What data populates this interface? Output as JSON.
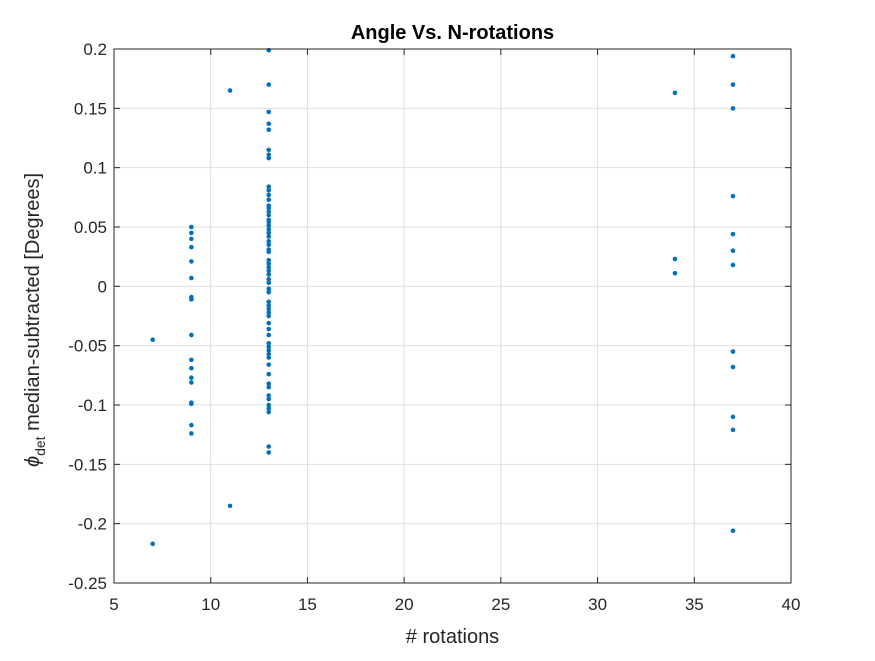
{
  "chart_data": {
    "type": "scatter",
    "title": "Angle Vs. N-rotations",
    "xlabel": "# rotations",
    "ylabel": {
      "symbol": "ϕ",
      "subscript": "det",
      "rest": " median-subtracted [Degrees]"
    },
    "xlim": [
      5,
      40
    ],
    "ylim": [
      -0.25,
      0.2
    ],
    "xticks": [
      5,
      10,
      15,
      20,
      25,
      30,
      35,
      40
    ],
    "yticks": [
      -0.25,
      -0.2,
      -0.15,
      -0.1,
      -0.05,
      0,
      0.05,
      0.1,
      0.15,
      0.2
    ],
    "xtick_labels": [
      "5",
      "10",
      "15",
      "20",
      "25",
      "30",
      "35",
      "40"
    ],
    "ytick_labels": [
      "-0.25",
      "-0.2",
      "-0.15",
      "-0.1",
      "-0.05",
      "0",
      "0.05",
      "0.1",
      "0.15",
      "0.2"
    ],
    "grid": true,
    "marker_color": "#0072BD",
    "points": [
      [
        7,
        -0.045
      ],
      [
        7,
        -0.217
      ],
      [
        9,
        0.05
      ],
      [
        9,
        0.045
      ],
      [
        9,
        0.04
      ],
      [
        9,
        0.033
      ],
      [
        9,
        0.021
      ],
      [
        9,
        0.007
      ],
      [
        9,
        -0.009
      ],
      [
        9,
        -0.011
      ],
      [
        9,
        -0.041
      ],
      [
        9,
        -0.062
      ],
      [
        9,
        -0.069
      ],
      [
        9,
        -0.077
      ],
      [
        9,
        -0.081
      ],
      [
        9,
        -0.098
      ],
      [
        9,
        -0.099
      ],
      [
        9,
        -0.117
      ],
      [
        9,
        -0.124
      ],
      [
        11,
        0.165
      ],
      [
        11,
        -0.185
      ],
      [
        13,
        0.199
      ],
      [
        13,
        0.17
      ],
      [
        13,
        0.147
      ],
      [
        13,
        0.137
      ],
      [
        13,
        0.132
      ],
      [
        13,
        0.115
      ],
      [
        13,
        0.111
      ],
      [
        13,
        0.108
      ],
      [
        13,
        0.084
      ],
      [
        13,
        0.081
      ],
      [
        13,
        0.077
      ],
      [
        13,
        0.073
      ],
      [
        13,
        0.068
      ],
      [
        13,
        0.066
      ],
      [
        13,
        0.063
      ],
      [
        13,
        0.06
      ],
      [
        13,
        0.056
      ],
      [
        13,
        0.054
      ],
      [
        13,
        0.051
      ],
      [
        13,
        0.048
      ],
      [
        13,
        0.045
      ],
      [
        13,
        0.042
      ],
      [
        13,
        0.038
      ],
      [
        13,
        0.035
      ],
      [
        13,
        0.031
      ],
      [
        13,
        0.029
      ],
      [
        13,
        0.022
      ],
      [
        13,
        0.019
      ],
      [
        13,
        0.016
      ],
      [
        13,
        0.013
      ],
      [
        13,
        0.01
      ],
      [
        13,
        0.006
      ],
      [
        13,
        0.003
      ],
      [
        13,
        -0.002
      ],
      [
        13,
        -0.005
      ],
      [
        13,
        -0.013
      ],
      [
        13,
        -0.016
      ],
      [
        13,
        -0.019
      ],
      [
        13,
        -0.022
      ],
      [
        13,
        -0.025
      ],
      [
        13,
        -0.031
      ],
      [
        13,
        -0.036
      ],
      [
        13,
        -0.041
      ],
      [
        13,
        -0.048
      ],
      [
        13,
        -0.051
      ],
      [
        13,
        -0.054
      ],
      [
        13,
        -0.057
      ],
      [
        13,
        -0.06
      ],
      [
        13,
        -0.066
      ],
      [
        13,
        -0.074
      ],
      [
        13,
        -0.082
      ],
      [
        13,
        -0.085
      ],
      [
        13,
        -0.092
      ],
      [
        13,
        -0.095
      ],
      [
        13,
        -0.1
      ],
      [
        13,
        -0.103
      ],
      [
        13,
        -0.106
      ],
      [
        13,
        -0.135
      ],
      [
        13,
        -0.14
      ],
      [
        34,
        0.163
      ],
      [
        34,
        0.023
      ],
      [
        34,
        0.011
      ],
      [
        37,
        0.194
      ],
      [
        37,
        0.17
      ],
      [
        37,
        0.15
      ],
      [
        37,
        0.076
      ],
      [
        37,
        0.044
      ],
      [
        37,
        0.03
      ],
      [
        37,
        0.018
      ],
      [
        37,
        -0.055
      ],
      [
        37,
        -0.068
      ],
      [
        37,
        -0.11
      ],
      [
        37,
        -0.121
      ],
      [
        37,
        -0.206
      ]
    ]
  }
}
